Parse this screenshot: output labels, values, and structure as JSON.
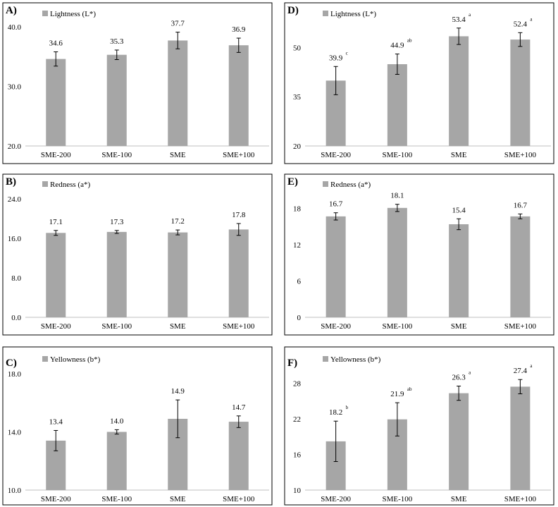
{
  "bar_color": "#a6a6a6",
  "panels": [
    {
      "id": "A",
      "label": "A)",
      "legend": "Lightness (L*)",
      "ylim": [
        20,
        40
      ],
      "ticks": [
        "20.0",
        "30.0",
        "40.0"
      ],
      "tickvals": [
        20,
        30,
        40
      ]
    },
    {
      "id": "B",
      "label": "B)",
      "legend": "Redness (a*)",
      "ylim": [
        0,
        24
      ],
      "ticks": [
        "0.0",
        "8.0",
        "16.0",
        "24.0"
      ],
      "tickvals": [
        0,
        8,
        16,
        24
      ]
    },
    {
      "id": "C",
      "label": "C)",
      "legend": "Yellowness (b*)",
      "ylim": [
        10,
        18
      ],
      "ticks": [
        "10.0",
        "14.0",
        "18.0"
      ],
      "tickvals": [
        10,
        14,
        18
      ]
    },
    {
      "id": "D",
      "label": "D)",
      "legend": "Lightness (L*)",
      "ylim": [
        20,
        58
      ],
      "ticks": [
        "20",
        "35",
        "50"
      ],
      "tickvals": [
        20,
        35,
        50
      ]
    },
    {
      "id": "E",
      "label": "E)",
      "legend": "Redness (a*)",
      "ylim": [
        0,
        21
      ],
      "ticks": [
        "0",
        "6",
        "12",
        "18"
      ],
      "tickvals": [
        0,
        6,
        12,
        18
      ]
    },
    {
      "id": "F",
      "label": "F)",
      "legend": "Yellowness (b*)",
      "ylim": [
        10,
        31
      ],
      "ticks": [
        "10",
        "16",
        "22",
        "28"
      ],
      "tickvals": [
        10,
        16,
        22,
        28
      ]
    }
  ],
  "chart_data": [
    {
      "type": "bar",
      "panel": "A",
      "title": "Lightness (L*)",
      "categories": [
        "SME-200",
        "SME-100",
        "SME",
        "SME+100"
      ],
      "values": [
        34.6,
        35.3,
        37.7,
        36.9
      ],
      "value_labels": [
        "34.6",
        "35.3",
        "37.7",
        "36.9"
      ],
      "errors": [
        1.2,
        0.8,
        1.4,
        1.2
      ],
      "sig_letters": [
        "",
        "",
        "",
        ""
      ],
      "ylim": [
        20,
        40
      ]
    },
    {
      "type": "bar",
      "panel": "B",
      "title": "Redness (a*)",
      "categories": [
        "SME-200",
        "SME-100",
        "SME",
        "SME+100"
      ],
      "values": [
        17.1,
        17.3,
        17.2,
        17.8
      ],
      "value_labels": [
        "17.1",
        "17.3",
        "17.2",
        "17.8"
      ],
      "errors": [
        0.5,
        0.3,
        0.5,
        1.2
      ],
      "sig_letters": [
        "",
        "",
        "",
        ""
      ],
      "ylim": [
        0,
        24
      ]
    },
    {
      "type": "bar",
      "panel": "C",
      "title": "Yellowness (b*)",
      "categories": [
        "SME-200",
        "SME-100",
        "SME",
        "SME+100"
      ],
      "values": [
        13.4,
        14.0,
        14.9,
        14.7
      ],
      "value_labels": [
        "13.4",
        "14.0",
        "14.9",
        "14.7"
      ],
      "errors": [
        0.7,
        0.15,
        1.3,
        0.4
      ],
      "sig_letters": [
        "",
        "",
        "",
        ""
      ],
      "ylim": [
        10,
        18
      ]
    },
    {
      "type": "bar",
      "panel": "D",
      "title": "Lightness (L*)",
      "categories": [
        "SME-200",
        "SME-100",
        "SME",
        "SME+100"
      ],
      "values": [
        39.9,
        44.9,
        53.4,
        52.4
      ],
      "value_labels": [
        "39.9",
        "44.9",
        "53.4",
        "52.4"
      ],
      "errors": [
        4.3,
        3.1,
        2.5,
        2.1
      ],
      "sig_letters": [
        "c",
        "ab",
        "a",
        "a"
      ],
      "ylim": [
        20,
        58
      ]
    },
    {
      "type": "bar",
      "panel": "E",
      "title": "Redness (a*)",
      "categories": [
        "SME-200",
        "SME-100",
        "SME",
        "SME+100"
      ],
      "values": [
        16.7,
        18.1,
        15.4,
        16.7
      ],
      "value_labels": [
        "16.7",
        "18.1",
        "15.4",
        "16.7"
      ],
      "errors": [
        0.6,
        0.6,
        0.9,
        0.4
      ],
      "sig_letters": [
        "",
        "",
        "",
        ""
      ],
      "ylim": [
        0,
        21
      ]
    },
    {
      "type": "bar",
      "panel": "F",
      "title": "Yellowness (b*)",
      "categories": [
        "SME-200",
        "SME-100",
        "SME",
        "SME+100"
      ],
      "values": [
        18.2,
        21.9,
        26.3,
        27.4
      ],
      "value_labels": [
        "18.2",
        "21.9",
        "26.3",
        "27.4"
      ],
      "errors": [
        3.4,
        2.8,
        1.2,
        1.2
      ],
      "sig_letters": [
        "b",
        "ab",
        "a",
        "a"
      ],
      "ylim": [
        10,
        31
      ]
    }
  ]
}
